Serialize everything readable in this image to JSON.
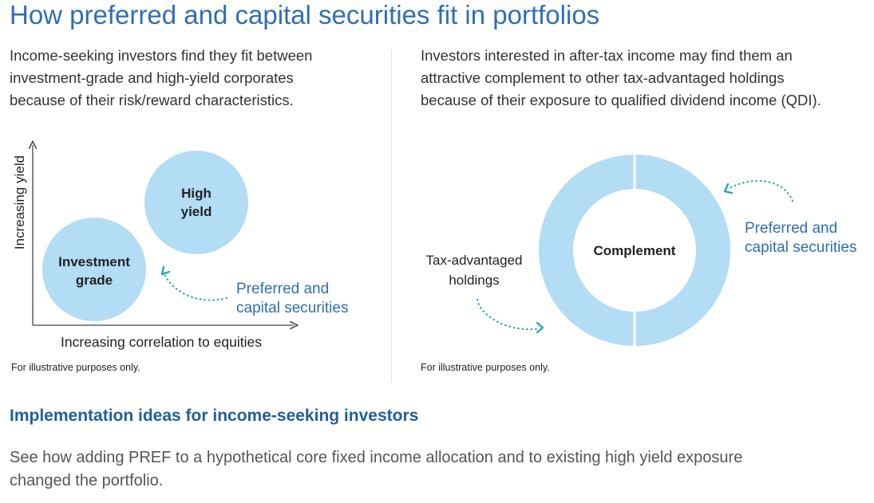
{
  "title": "How preferred and capital securities fit in portfolios",
  "left_panel": {
    "description_lines": [
      "Income-seeking investors find they fit between",
      "investment-grade and high-yield corporates",
      "because of their risk/reward characteristics."
    ],
    "y_axis_label": "Increasing yield",
    "x_axis_label": "Increasing correlation to equities",
    "bubble_high_yield": [
      "High",
      "yield"
    ],
    "bubble_investment_grade": [
      "Investment",
      "grade"
    ],
    "callout": [
      "Preferred and",
      "capital securities"
    ],
    "note": "For illustrative purposes only."
  },
  "right_panel": {
    "description_lines": [
      "Investors interested in after-tax income may find them an",
      "attractive complement to other tax-advantaged holdings",
      "because of their exposure to qualified dividend income (QDI)."
    ],
    "center_label": "Complement",
    "left_label": [
      "Tax-advantaged",
      "holdings"
    ],
    "callout": [
      "Preferred and",
      "capital securities"
    ],
    "note": "For illustrative purposes only."
  },
  "implementation": {
    "heading": "Implementation ideas for income-seeking investors",
    "body_lines": [
      "See how adding PREF to a hypothetical core fixed income allocation and to existing high yield exposure",
      "changed the portfolio."
    ]
  },
  "colors": {
    "title": "#2f6fb5",
    "bubble": "#b3dcf5",
    "arrow": "#22a8ad",
    "callout_text": "#2f6fb5",
    "heading": "#1f5f9e"
  }
}
